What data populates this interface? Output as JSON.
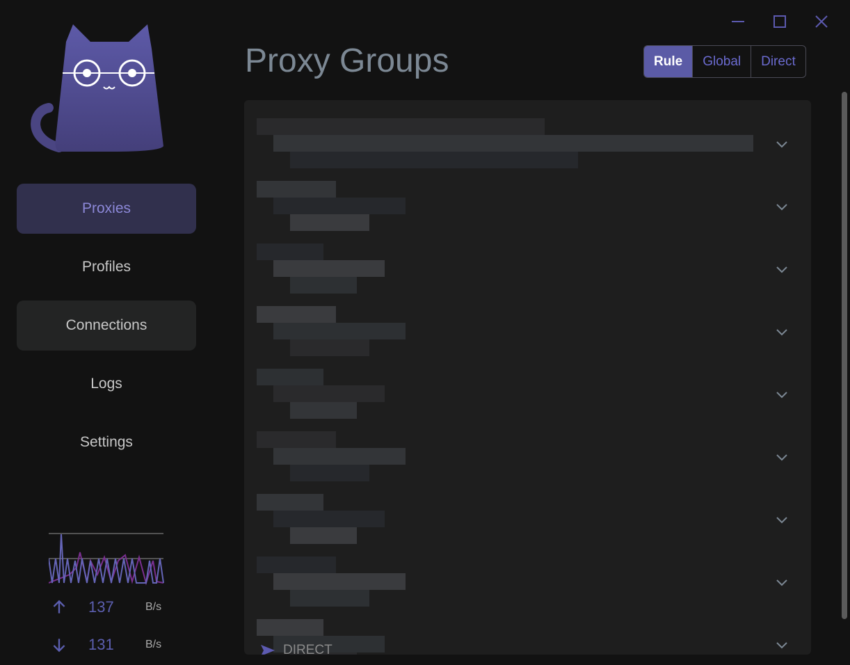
{
  "window": {
    "controls": [
      "minimize-icon",
      "maximize-icon",
      "close-icon"
    ]
  },
  "sidebar": {
    "items": [
      {
        "label": "Proxies",
        "active": true
      },
      {
        "label": "Profiles"
      },
      {
        "label": "Connections"
      },
      {
        "label": "Logs"
      },
      {
        "label": "Settings"
      }
    ]
  },
  "traffic": {
    "upload": {
      "value": "137",
      "unit": "B/s"
    },
    "download": {
      "value": "131",
      "unit": "B/s"
    }
  },
  "header": {
    "title": "Proxy Groups"
  },
  "modes": {
    "options": [
      "Rule",
      "Global",
      "Direct"
    ],
    "selected": "Rule"
  },
  "groups": {
    "count": 9,
    "last_selected": "DIRECT"
  },
  "colors": {
    "accent": "#5b5ba6",
    "active_nav_bg": "#31304d"
  }
}
